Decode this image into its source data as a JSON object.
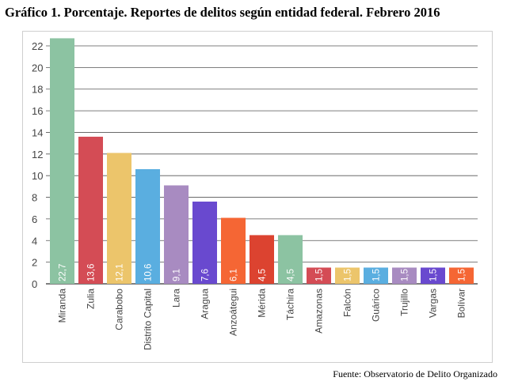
{
  "page": {
    "title": "Gráfico 1. Porcentaje. Reportes de delitos según entidad federal. Febrero 2016",
    "source": "Fuente: Observatorio de Delito Organizado"
  },
  "chart_data": {
    "type": "bar",
    "title": "",
    "xlabel": "",
    "ylabel": "",
    "ylim": [
      0,
      22
    ],
    "yticks": [
      0,
      2,
      4,
      6,
      8,
      10,
      12,
      14,
      16,
      18,
      20,
      22
    ],
    "grid": true,
    "categories": [
      "Miranda",
      "Zulia",
      "Carabobo",
      "Distrito Capital",
      "Lara",
      "Aragua",
      "Anzoátegui",
      "Mérida",
      "Táchira",
      "Amazonas",
      "Falcón",
      "Guárico",
      "Trujillo",
      "Vargas",
      "Bolívar"
    ],
    "values": [
      22.7,
      13.6,
      12.1,
      10.6,
      9.1,
      7.6,
      6.1,
      4.5,
      4.5,
      1.5,
      1.5,
      1.5,
      1.5,
      1.5,
      1.5
    ],
    "value_labels": [
      "22,7",
      "13,6",
      "12,1",
      "10,6",
      "9,1",
      "7,6",
      "6,1",
      "4,5",
      "4,5",
      "1,5",
      "1,5",
      "1,5",
      "1,5",
      "1,5",
      "1,5"
    ],
    "colors": [
      "#8cc3a2",
      "#d44c55",
      "#ecc56b",
      "#5aaee0",
      "#a88bc1",
      "#6949cf",
      "#f56634",
      "#dc4330",
      "#8cc3a2",
      "#d44c55",
      "#ecc56b",
      "#5aaee0",
      "#a88bc1",
      "#6949cf",
      "#f56634"
    ]
  }
}
